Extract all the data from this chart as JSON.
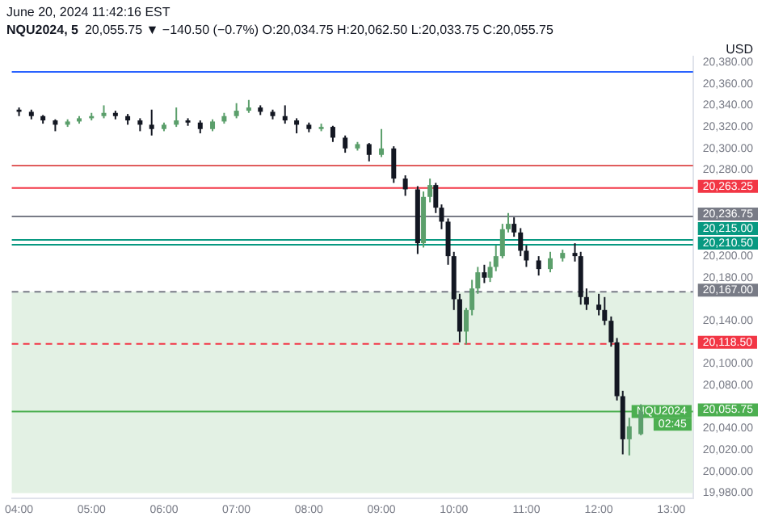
{
  "chart_data": {
    "type": "candlestick",
    "title": "NQU2024, 5",
    "subtitle": "20,055.75 ▼ −140.50 (−0.7%) O:20,034.75 H:20,062.50 L:20,033.75 C:20,055.75",
    "ylabel": "USD",
    "annotations": [
      "June 20, 2024 11:42:16 EST",
      {
        "text": "NQU2024",
        "x": 13.28,
        "y": 20055.75
      },
      {
        "text": "02:45",
        "x": 13.28,
        "y": 20044
      }
    ],
    "series": [
      {
        "color": "#5b9f6b",
        "x": [
          4.67,
          4.83,
          5,
          5.17,
          6,
          6.17,
          6.67,
          6.83,
          7,
          7.17,
          8.17,
          8.67,
          9,
          9.58,
          9.67,
          10.17,
          10.25,
          10.33,
          10.5,
          10.58,
          10.67,
          10.75,
          11.33,
          11.5,
          12.42,
          12.58
        ],
        "ohlc": [
          [
            20322,
            20327,
            20320,
            20325
          ],
          [
            20325,
            20330,
            20323,
            20328
          ],
          [
            20328,
            20333,
            20326,
            20330
          ],
          [
            20330,
            20340,
            20328,
            20333
          ],
          [
            20318,
            20324,
            20316,
            20322
          ],
          [
            20322,
            20338,
            20320,
            20326
          ],
          [
            20318,
            20327,
            20316,
            20325
          ],
          [
            20325,
            20333,
            20323,
            20330
          ],
          [
            20330,
            20342,
            20328,
            20335
          ],
          [
            20335,
            20345,
            20333,
            20338
          ],
          [
            20318,
            20323,
            20316,
            20320
          ],
          [
            20300,
            20306,
            20298,
            20304
          ],
          [
            20294,
            20318,
            20292,
            20300
          ],
          [
            20212,
            20260,
            20208,
            20255
          ],
          [
            20255,
            20272,
            20250,
            20266
          ],
          [
            20130,
            20152,
            20118,
            20150
          ],
          [
            20150,
            20178,
            20145,
            20170
          ],
          [
            20170,
            20190,
            20165,
            20185
          ],
          [
            20180,
            20195,
            20176,
            20190
          ],
          [
            20190,
            20210,
            20186,
            20200
          ],
          [
            20200,
            20230,
            20198,
            20225
          ],
          [
            20225,
            20240,
            20222,
            20230
          ],
          [
            20188,
            20204,
            20185,
            20198
          ],
          [
            20198,
            20206,
            20195,
            20203
          ],
          [
            20030,
            20050,
            20015,
            20042
          ],
          [
            20034.75,
            20062.5,
            20033.75,
            20055.75
          ]
        ]
      },
      {
        "color": "#131722",
        "x": [
          4,
          4.17,
          4.33,
          4.5,
          5.33,
          5.5,
          5.67,
          5.83,
          6.33,
          6.5,
          7.33,
          7.5,
          7.67,
          7.83,
          8,
          8.33,
          8.5,
          8.83,
          9.17,
          9.33,
          9.5,
          9.75,
          9.83,
          9.92,
          10,
          10.08,
          10.42,
          10.83,
          10.92,
          11,
          11.17,
          11.67,
          11.75,
          11.83,
          12,
          12.08,
          12.17,
          12.25,
          12.33
        ],
        "ohlc": [
          [
            20336,
            20338,
            20330,
            20334
          ],
          [
            20334,
            20336,
            20327,
            20330
          ],
          [
            20330,
            20331,
            20323,
            20326
          ],
          [
            20326,
            20327,
            20316,
            20322
          ],
          [
            20333,
            20335,
            20327,
            20330
          ],
          [
            20330,
            20332,
            20322,
            20326
          ],
          [
            20326,
            20328,
            20316,
            20322
          ],
          [
            20322,
            20336,
            20312,
            20318
          ],
          [
            20326,
            20328,
            20321,
            20324
          ],
          [
            20324,
            20326,
            20314,
            20318
          ],
          [
            20338,
            20340,
            20331,
            20334
          ],
          [
            20334,
            20336,
            20327,
            20330
          ],
          [
            20330,
            20340,
            20323,
            20326
          ],
          [
            20326,
            20328,
            20314,
            20322
          ],
          [
            20322,
            20324,
            20315,
            20318
          ],
          [
            20320,
            20321,
            20306,
            20310
          ],
          [
            20310,
            20312,
            20296,
            20300
          ],
          [
            20304,
            20305,
            20288,
            20294
          ],
          [
            20300,
            20302,
            20268,
            20272
          ],
          [
            20272,
            20275,
            20256,
            20262
          ],
          [
            20262,
            20265,
            20202,
            20212
          ],
          [
            20266,
            20268,
            20240,
            20245
          ],
          [
            20245,
            20248,
            20225,
            20232
          ],
          [
            20232,
            20235,
            20192,
            20200
          ],
          [
            20200,
            20204,
            20150,
            20160
          ],
          [
            20160,
            20165,
            20120,
            20130
          ],
          [
            20185,
            20192,
            20175,
            20180
          ],
          [
            20230,
            20236,
            20218,
            20222
          ],
          [
            20222,
            20226,
            20200,
            20205
          ],
          [
            20205,
            20210,
            20190,
            20196
          ],
          [
            20196,
            20200,
            20182,
            20188
          ],
          [
            20203,
            20212,
            20195,
            20200
          ],
          [
            20200,
            20204,
            20155,
            20162
          ],
          [
            20162,
            20170,
            20150,
            20155
          ],
          [
            20155,
            20165,
            20145,
            20150
          ],
          [
            20150,
            20162,
            20136,
            20140
          ],
          [
            20140,
            20144,
            20116,
            20120
          ],
          [
            20120,
            20124,
            20066,
            20070
          ],
          [
            20070,
            20075,
            20016,
            20030
          ]
        ]
      }
    ],
    "xlim": [
      3.9,
      13.3
    ],
    "xticks": [
      {
        "value": 4,
        "label": "04:00"
      },
      {
        "value": 5,
        "label": "05:00"
      },
      {
        "value": 6,
        "label": "06:00"
      },
      {
        "value": 7,
        "label": "07:00"
      },
      {
        "value": 8,
        "label": "08:00"
      },
      {
        "value": 9,
        "label": "09:00"
      },
      {
        "value": 10,
        "label": "10:00"
      },
      {
        "value": 11,
        "label": "11:00"
      },
      {
        "value": 12,
        "label": "12:00"
      },
      {
        "value": 13,
        "label": "13:00"
      }
    ],
    "ylim": [
      19975,
      20385
    ],
    "yticks": [
      {
        "value": 19980,
        "label": "19,980.00"
      },
      {
        "value": 20000,
        "label": "20,000.00"
      },
      {
        "value": 20020,
        "label": "20,020.00"
      },
      {
        "value": 20040,
        "label": "20,040.00"
      },
      {
        "value": 20080,
        "label": "20,080.00"
      },
      {
        "value": 20100,
        "label": "20,100.00"
      },
      {
        "value": 20140,
        "label": "20,140.00"
      },
      {
        "value": 20180,
        "label": "20,180.00"
      },
      {
        "value": 20200,
        "label": "20,200.00"
      },
      {
        "value": 20280,
        "label": "20,280.00"
      },
      {
        "value": 20300,
        "label": "20,300.00"
      },
      {
        "value": 20320,
        "label": "20,320.00"
      },
      {
        "value": 20340,
        "label": "20,340.00"
      },
      {
        "value": 20360,
        "label": "20,360.00"
      },
      {
        "value": 20380,
        "label": "20,380.00"
      }
    ],
    "ref_lines": [
      {
        "axis": "y",
        "value": 20371,
        "color": "#2962ff"
      },
      {
        "axis": "y",
        "value": 20284,
        "color": "#e05c5c"
      },
      {
        "axis": "y",
        "value": 20263.25,
        "label": "20,263.25",
        "color": "#f23645"
      },
      {
        "axis": "y",
        "value": 20236.75,
        "label": "20,236.75",
        "color": "#787b86"
      },
      {
        "axis": "y",
        "value": 20215,
        "label": "20,215.00",
        "color": "#089981"
      },
      {
        "axis": "y",
        "value": 20210.5,
        "label": "20,210.50",
        "color": "#089981"
      },
      {
        "axis": "y",
        "value": 20167,
        "label": "20,167.00",
        "color": "#787b86",
        "line_style": "dashed"
      },
      {
        "axis": "y",
        "value": 20118.5,
        "label": "20,118.50",
        "color": "#f23645",
        "line_style": "dashed"
      },
      {
        "axis": "y",
        "value": 20055.75,
        "label": "20,055.75",
        "color": "#4caf50"
      }
    ],
    "bands": [
      {
        "axis": "y",
        "from": 19980,
        "to": 20167,
        "color": "#e3f1e4"
      }
    ],
    "grid": false,
    "legend": false
  }
}
